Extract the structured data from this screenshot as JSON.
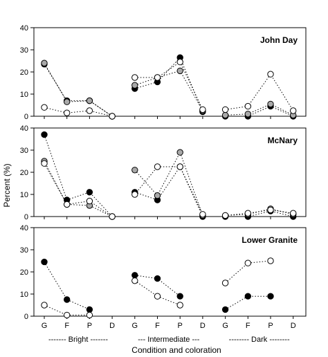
{
  "chart_data": {
    "type": "scatter",
    "ylabel": "Percent (%)",
    "xlabel": "Condition and coloration",
    "categories": [
      "G",
      "F",
      "P",
      "D",
      "G",
      "F",
      "P",
      "D",
      "G",
      "F",
      "P",
      "D"
    ],
    "groups": [
      "------- Bright -------",
      "--- Intermediate ---",
      "-------- Dark --------"
    ],
    "ylim": [
      0,
      40
    ],
    "yticks": [
      0,
      10,
      20,
      30,
      40
    ],
    "series_styles": [
      {
        "fill": "#000000",
        "stroke": "#000000"
      },
      {
        "fill": "#a9a9a9",
        "stroke": "#000000"
      },
      {
        "fill": "#ffffff",
        "stroke": "#000000"
      }
    ],
    "panels": [
      {
        "title": "John Day",
        "series": [
          {
            "values": [
              23.5,
              7,
              7,
              0,
              12.5,
              15.5,
              26.5,
              2,
              0,
              0,
              4.5,
              0
            ]
          },
          {
            "values": [
              24,
              6.5,
              7,
              0,
              14,
              17.5,
              20.5,
              2.5,
              0.5,
              1,
              5.5,
              0.5
            ]
          },
          {
            "values": [
              4,
              1.5,
              2.5,
              0,
              17.5,
              17.5,
              24.5,
              3,
              3,
              4.5,
              19,
              2.5
            ]
          }
        ]
      },
      {
        "title": "McNary",
        "series": [
          {
            "values": [
              37,
              7.5,
              11,
              0,
              11,
              7.5,
              22.5,
              0,
              0,
              0,
              2.5,
              0
            ]
          },
          {
            "values": [
              25,
              5.5,
              5,
              0,
              21,
              9.5,
              29,
              0.5,
              0.5,
              1,
              3.5,
              1
            ]
          },
          {
            "values": [
              24,
              5.5,
              7,
              0,
              10,
              22.5,
              22.5,
              1,
              0.5,
              1.5,
              3,
              1.5
            ]
          }
        ]
      },
      {
        "title": "Lower Granite",
        "series": [
          {
            "values": [
              24.5,
              7.5,
              3,
              null,
              18.5,
              17,
              9,
              null,
              3,
              9,
              9,
              null
            ]
          },
          {
            "values": [
              null,
              null,
              null,
              null,
              null,
              null,
              null,
              null,
              null,
              null,
              null,
              null
            ]
          },
          {
            "values": [
              5,
              0.5,
              0.5,
              null,
              16,
              9,
              5,
              null,
              15,
              24,
              25,
              null
            ]
          }
        ]
      }
    ]
  }
}
